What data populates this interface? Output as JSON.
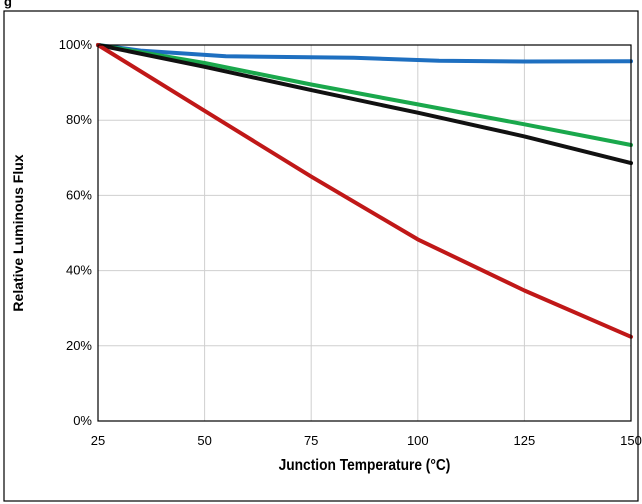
{
  "figure": {
    "caption_fragment": "g"
  },
  "chart_data": {
    "type": "line",
    "title": "",
    "xlabel": "Junction Temperature (°C)",
    "ylabel": "Relative Luminous Flux",
    "xlim": [
      25,
      150
    ],
    "ylim": [
      0,
      100
    ],
    "x_ticks": [
      25,
      50,
      75,
      100,
      125,
      150
    ],
    "x_tick_labels": [
      "25",
      "50",
      "75",
      "100",
      "125",
      "150"
    ],
    "y_ticks": [
      0,
      20,
      40,
      60,
      80,
      100
    ],
    "y_tick_labels": [
      "0%",
      "20%",
      "40%",
      "60%",
      "80%",
      "100%"
    ],
    "grid": true,
    "legend": "none",
    "series": [
      {
        "color": "#1e6fc0",
        "x": [
          25,
          35,
          55,
          85,
          105,
          125,
          150
        ],
        "y": [
          100,
          98.5,
          97,
          96.6,
          95.8,
          95.6,
          95.7
        ]
      },
      {
        "color": "#1aa84c",
        "x": [
          25,
          50,
          75,
          100,
          125,
          150
        ],
        "y": [
          100,
          95.2,
          89.5,
          84.2,
          78.9,
          73.4
        ]
      },
      {
        "color": "#111111",
        "x": [
          25,
          50,
          75,
          100,
          125,
          150
        ],
        "y": [
          100,
          94.2,
          88,
          82,
          75.7,
          68.6
        ]
      },
      {
        "color": "#c01818",
        "x": [
          25,
          50,
          75,
          100,
          125,
          150
        ],
        "y": [
          100,
          82.5,
          65,
          48.3,
          34.7,
          22.4
        ]
      }
    ]
  }
}
